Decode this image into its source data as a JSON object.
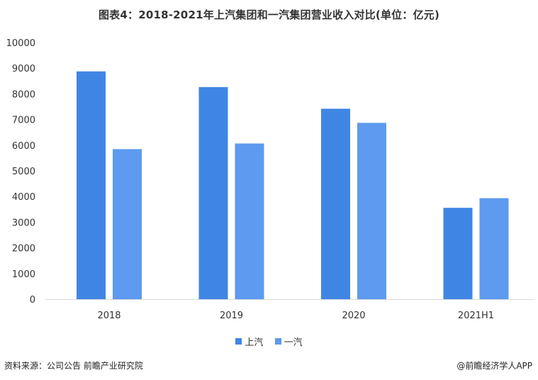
{
  "page": {
    "title": "图表4：2018-2021年上汽集团和一汽集团营业收入对比(单位：亿元)",
    "source": "资料来源：公司公告 前瞻产业研究院",
    "brand": "@前瞻经济学人APP"
  },
  "colors": {
    "series1": "#3f86e4",
    "series2": "#5d9af0",
    "axis": "#d9d9d9",
    "text": "#333333"
  },
  "chart_data": {
    "type": "bar",
    "categories": [
      "2018",
      "2019",
      "2020",
      "2021H1"
    ],
    "series": [
      {
        "name": "上汽",
        "values": [
          8876,
          8265,
          7421,
          3560
        ]
      },
      {
        "name": "一汽",
        "values": [
          5847,
          6066,
          6870,
          3935
        ]
      }
    ],
    "ylim": [
      0,
      10000
    ],
    "yticks": [
      "0",
      "1000",
      "2000",
      "3000",
      "4000",
      "5000",
      "6000",
      "7000",
      "8000",
      "9000",
      "10000"
    ],
    "grid": false,
    "legend": "bottom-center",
    "title": "图表4：2018-2021年上汽集团和一汽集团营业收入对比(单位：亿元)",
    "xlabel": "",
    "ylabel": ""
  }
}
